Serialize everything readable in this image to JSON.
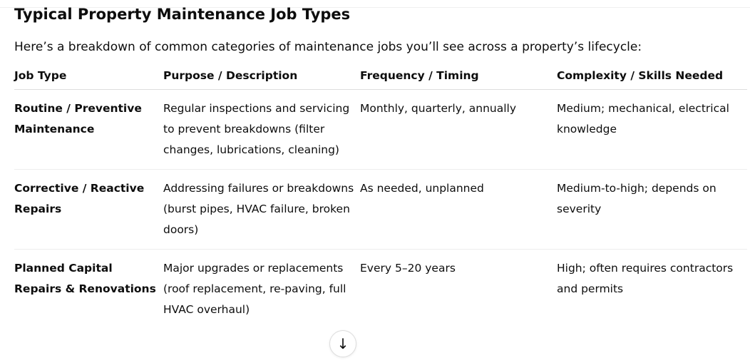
{
  "title": "Typical Property Maintenance Job Types",
  "intro": "Here’s a breakdown of common categories of maintenance jobs you’ll see across a property’s lifecycle:",
  "headers": [
    "Job Type",
    "Purpose / Description",
    "Frequency / Timing",
    "Complexity / Skills Needed"
  ],
  "rows": [
    [
      "Routine / Preventive Maintenance",
      "Regular inspections and servicing to prevent breakdowns (filter changes, lubrications, cleaning)",
      "Monthly, quarterly, annually",
      "Medium; mechanical, electrical knowledge"
    ],
    [
      "Corrective / Reactive Repairs",
      "Addressing failures or breakdowns (burst pipes, HVAC failure, broken doors)",
      "As needed, unplanned",
      "Medium-to-high; depends on severity"
    ],
    [
      "Planned Capital Repairs & Renovations",
      "Major upgrades or replacements (roof replacement, re-paving, full HVAC overhaul)",
      "Every 5–20 years",
      "High; often requires contractors and permits"
    ]
  ],
  "scroll_icon": "arrow-down-icon"
}
